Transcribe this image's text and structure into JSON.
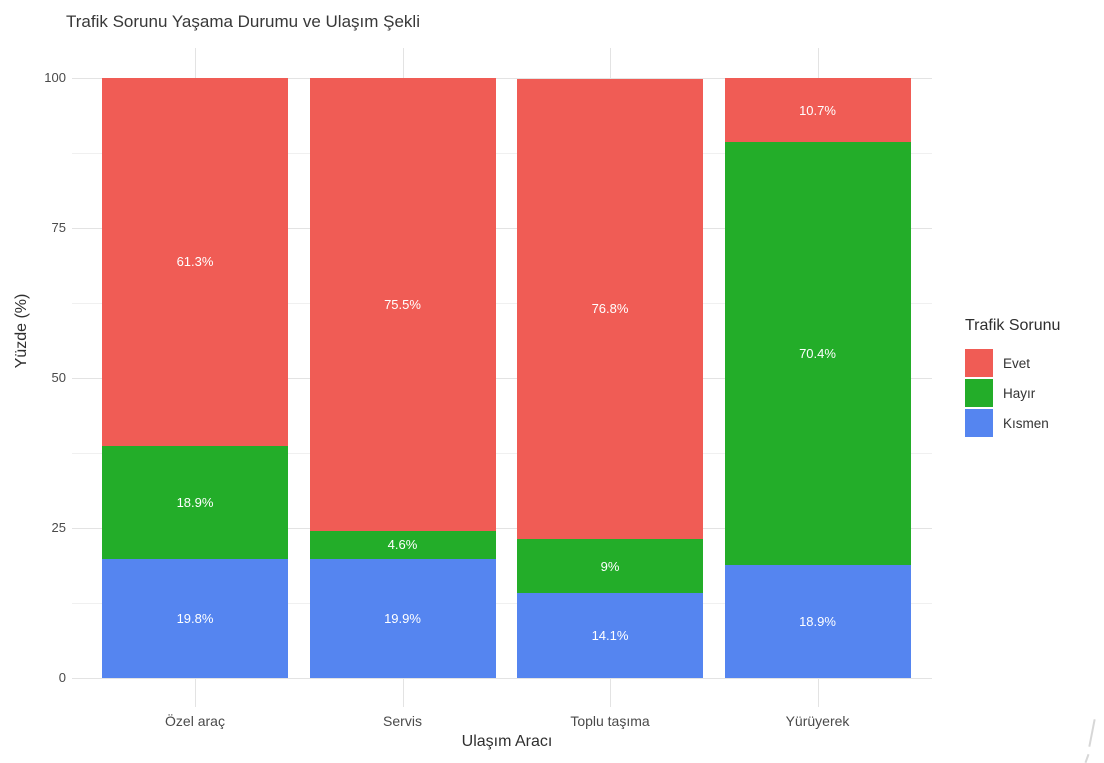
{
  "chart_data": {
    "type": "bar",
    "variant": "stacked-100-percent",
    "title": "Trafik Sorunu Yaşama Durumu ve Ulaşım Şekli",
    "xlabel": "Ulaşım Aracı",
    "ylabel": "Yüzde (%)",
    "categories": [
      "Özel araç",
      "Servis",
      "Toplu taşıma",
      "Yürüyerek"
    ],
    "series": [
      {
        "name": "Evet",
        "color": "#F05C55",
        "values": [
          61.3,
          75.5,
          76.8,
          10.7
        ],
        "labels": [
          "61.3%",
          "75.5%",
          "76.8%",
          "10.7%"
        ]
      },
      {
        "name": "Hayır",
        "color": "#23AD29",
        "values": [
          18.9,
          4.6,
          9,
          70.4
        ],
        "labels": [
          "18.9%",
          "4.6%",
          "9%",
          "70.4%"
        ]
      },
      {
        "name": "Kısmen",
        "color": "#5585F0",
        "values": [
          19.8,
          19.9,
          14.1,
          18.9
        ],
        "labels": [
          "19.8%",
          "19.9%",
          "14.1%",
          "18.9%"
        ]
      }
    ],
    "stack_order_bottom_to_top": [
      "Kısmen",
      "Hayır",
      "Evet"
    ],
    "legend": {
      "title": "Trafik Sorunu",
      "position": "right",
      "entries": [
        "Evet",
        "Hayır",
        "Kısmen"
      ]
    },
    "y_ticks": [
      "0",
      "25",
      "50",
      "75",
      "100"
    ],
    "y_minor_ticks": [
      12.5,
      37.5,
      62.5,
      87.5
    ],
    "ylim": [
      0,
      100
    ],
    "grid": {
      "major": true,
      "minor": true
    },
    "bar_label_color": "#FFFFFF"
  }
}
